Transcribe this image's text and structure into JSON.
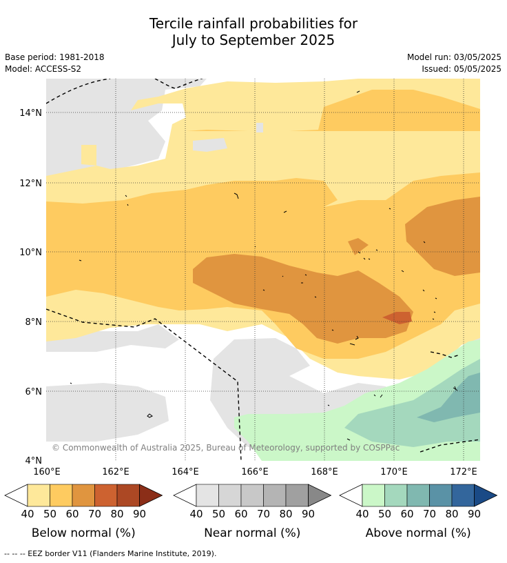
{
  "title": {
    "line1": "Tercile rainfall probabilities for",
    "line2": "July to September 2025"
  },
  "meta": {
    "base_period": "Base period: 1981-2018",
    "model": "Model: ACCESS-S2",
    "model_run": "Model run: 03/05/2025",
    "issued": "Issued: 05/05/2025"
  },
  "map": {
    "lat_ticks": [
      "4°N",
      "6°N",
      "8°N",
      "10°N",
      "12°N",
      "14°N"
    ],
    "lon_ticks": [
      "160°E",
      "162°E",
      "164°E",
      "166°E",
      "168°E",
      "170°E",
      "172°E"
    ],
    "copyright": "© Commonwealth of Australia 2025, Bureau of Meteorology, supported by COSPPac"
  },
  "colorbars": [
    {
      "title": "Below normal (%)",
      "ticks": [
        "40",
        "50",
        "60",
        "70",
        "80",
        "90"
      ],
      "colors": [
        "#fee89a",
        "#fecb60",
        "#e0953f",
        "#cd6230",
        "#ac4824",
        "#8b2e18"
      ]
    },
    {
      "title": "Near normal (%)",
      "ticks": [
        "40",
        "50",
        "60",
        "70",
        "80",
        "90"
      ],
      "colors": [
        "#e4e4e4",
        "#d6d6d6",
        "#c8c8c8",
        "#b4b4b4",
        "#a0a0a0",
        "#888888"
      ]
    },
    {
      "title": "Above normal (%)",
      "ticks": [
        "40",
        "50",
        "60",
        "70",
        "80",
        "90"
      ],
      "colors": [
        "#cbf7c8",
        "#a4d8bd",
        "#80b8b0",
        "#5a92a6",
        "#33669c",
        "#1a4a86"
      ]
    }
  ],
  "footnote": "--  --  -- EEZ border V11 (Flanders Marine Institute, 2019).",
  "colors": {
    "below_40": "#fee89a",
    "below_50": "#fecb60",
    "below_60": "#e0953f",
    "below_70": "#cd6230",
    "near": "#e4e4e4",
    "above_40": "#cbf7c8",
    "above_50": "#a4d8bd",
    "above_60": "#80b8b0"
  }
}
